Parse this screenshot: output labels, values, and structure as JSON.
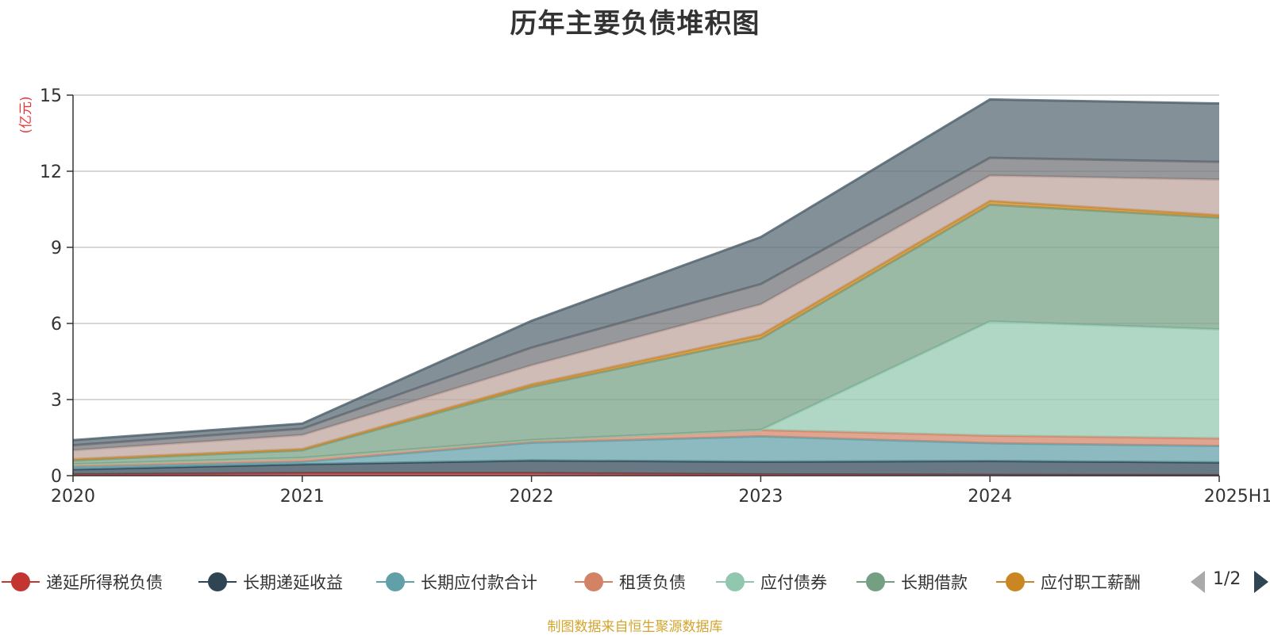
{
  "chart_data": {
    "type": "area",
    "stacked": true,
    "title": "历年主要负债堆积图",
    "ylabel": "(亿元)",
    "xlabel": "",
    "categories": [
      "2020",
      "2021",
      "2022",
      "2023",
      "2024",
      "2025H1"
    ],
    "ylim": [
      0,
      15
    ],
    "yticks": [
      0,
      3,
      6,
      9,
      12,
      15
    ],
    "grid": true,
    "legend_position": "bottom",
    "series": [
      {
        "name": "递延所得税负债",
        "color": "#c23531",
        "values": [
          0.05,
          0.1,
          0.1,
          0.05,
          0.03,
          0.02
        ]
      },
      {
        "name": "长期递延收益",
        "color": "#2f4554",
        "values": [
          0.2,
          0.35,
          0.5,
          0.5,
          0.55,
          0.5
        ]
      },
      {
        "name": "长期应付款合计",
        "color": "#61a0a8",
        "values": [
          0.1,
          0.1,
          0.7,
          1.0,
          0.7,
          0.65
        ]
      },
      {
        "name": "租赁负债",
        "color": "#d48265",
        "values": [
          0.1,
          0.15,
          0.1,
          0.25,
          0.3,
          0.3
        ]
      },
      {
        "name": "应付债券",
        "color": "#91c7ae",
        "values": [
          0.0,
          0.0,
          0.0,
          0.0,
          4.5,
          4.3
        ]
      },
      {
        "name": "长期借款",
        "color": "#749f83",
        "values": [
          0.15,
          0.3,
          2.1,
          3.6,
          4.6,
          4.4
        ]
      },
      {
        "name": "应付职工薪酬",
        "color": "#ca8622",
        "values": [
          0.05,
          0.05,
          0.1,
          0.15,
          0.15,
          0.1
        ]
      },
      {
        "name": "",
        "color": "#bda29a",
        "values": [
          0.35,
          0.55,
          0.75,
          1.2,
          1.0,
          1.4
        ]
      },
      {
        "name": "",
        "color": "#6e7074",
        "values": [
          0.2,
          0.25,
          0.7,
          0.8,
          0.7,
          0.7
        ]
      },
      {
        "name": "",
        "color": "#546570",
        "values": [
          0.2,
          0.2,
          1.05,
          1.85,
          2.3,
          2.3
        ]
      }
    ]
  },
  "legend": {
    "items": [
      "递延所得税负债",
      "长期递延收益",
      "长期应付款合计",
      "租赁负债",
      "应付债券",
      "长期借款",
      "应付职工薪酬"
    ],
    "page_indicator": "1/2"
  },
  "source_note": "制图数据来自恒生聚源数据库"
}
